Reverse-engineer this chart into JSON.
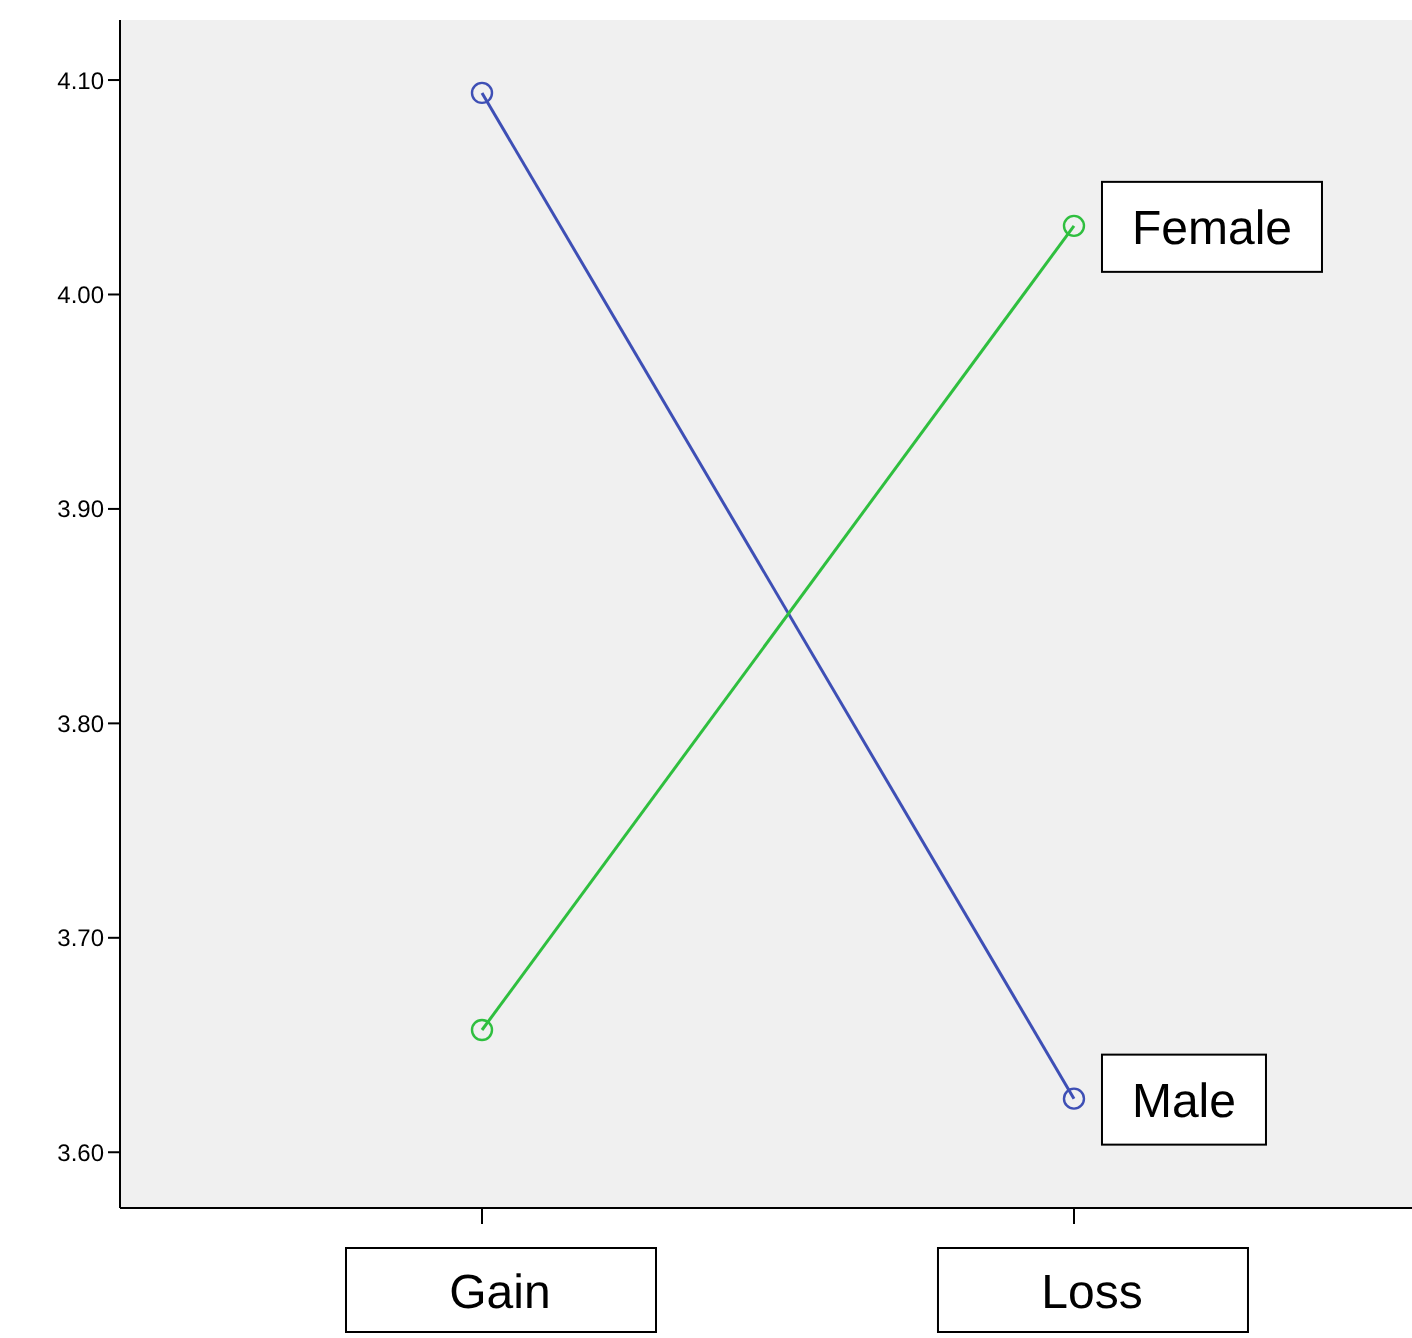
{
  "chart_data": {
    "type": "line",
    "categories": [
      "Gain",
      "Loss"
    ],
    "series": [
      {
        "name": "Male",
        "color": "#3e4fb5",
        "values": [
          4.094,
          3.625
        ]
      },
      {
        "name": "Female",
        "color": "#2fbf3f",
        "values": [
          3.657,
          4.032
        ]
      }
    ],
    "ylim": [
      3.574,
      4.128
    ],
    "yticks": [
      {
        "value": 3.6,
        "label": "3.60"
      },
      {
        "value": 3.7,
        "label": "3.70"
      },
      {
        "value": 3.8,
        "label": "3.80"
      },
      {
        "value": 3.9,
        "label": "3.90"
      },
      {
        "value": 4.0,
        "label": "4.00"
      },
      {
        "value": 4.1,
        "label": "4.10"
      }
    ],
    "marker": "circle"
  }
}
